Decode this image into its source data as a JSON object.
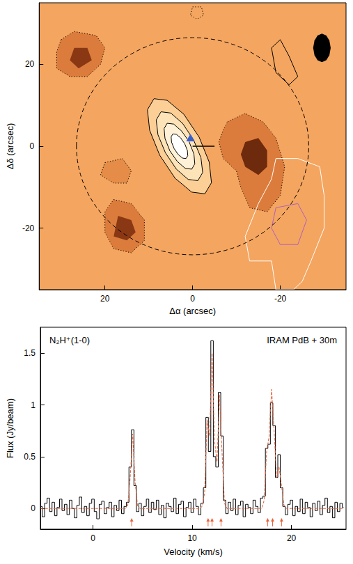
{
  "chart_data": [
    {
      "type": "map",
      "xlabel": "Δα (arcsec)",
      "ylabel": "Δδ (arcsec)",
      "xlim": [
        35,
        -35
      ],
      "ylim": [
        -35,
        35
      ],
      "xticks": [
        20,
        0,
        -20
      ],
      "yticks": [
        -20,
        0,
        20
      ],
      "color": "#f4a55f",
      "contours": [
        {
          "fill": "#dc7c3c",
          "color": "#000000",
          "line_style": "dotted",
          "points": [
            [
              -8,
              6
            ],
            [
              -12,
              8
            ],
            [
              -16,
              6
            ],
            [
              -19,
              2
            ],
            [
              -21,
              -5
            ],
            [
              -20,
              -12
            ],
            [
              -17,
              -16
            ],
            [
              -13,
              -15
            ],
            [
              -11,
              -10
            ],
            [
              -10,
              -6
            ],
            [
              -7,
              -3
            ],
            [
              -6,
              1
            ],
            [
              -7,
              4
            ]
          ]
        },
        {
          "fill": "#6e2a0c",
          "points": [
            [
              -12,
              1
            ],
            [
              -15,
              2
            ],
            [
              -17,
              -1
            ],
            [
              -17,
              -5
            ],
            [
              -15,
              -7
            ],
            [
              -12,
              -5
            ],
            [
              -11,
              -2
            ]
          ]
        },
        {
          "fill": "#dc7c3c",
          "color": "#000000",
          "line_style": "dotted",
          "points": [
            [
              30,
              26
            ],
            [
              27,
              28
            ],
            [
              22,
              27
            ],
            [
              20,
              24
            ],
            [
              21,
              20
            ],
            [
              24,
              17
            ],
            [
              28,
              17
            ],
            [
              31,
              19
            ],
            [
              31,
              23
            ]
          ]
        },
        {
          "fill": "#8a3814",
          "points": [
            [
              27,
              24
            ],
            [
              24,
              24
            ],
            [
              23,
              21
            ],
            [
              26,
              19
            ],
            [
              28,
              21
            ]
          ]
        },
        {
          "fill": "#dc7c3c",
          "color": "#000000",
          "line_style": "dotted",
          "points": [
            [
              18,
              -13
            ],
            [
              14,
              -14
            ],
            [
              11,
              -18
            ],
            [
              11,
              -23
            ],
            [
              14,
              -26
            ],
            [
              18,
              -25
            ],
            [
              20,
              -21
            ],
            [
              20,
              -16
            ]
          ]
        },
        {
          "fill": "#8a3814",
          "points": [
            [
              17,
              -17
            ],
            [
              14,
              -18
            ],
            [
              13,
              -21
            ],
            [
              15,
              -23
            ],
            [
              18,
              -22
            ]
          ]
        },
        {
          "fill": "#e58d48",
          "color": "#000000",
          "line_style": "dotted",
          "points": [
            [
              20,
              -4
            ],
            [
              16,
              -3
            ],
            [
              14,
              -6
            ],
            [
              15,
              -9
            ],
            [
              18,
              -9
            ],
            [
              21,
              -7
            ]
          ]
        },
        {
          "color": "#000000",
          "line_style": "dotted",
          "points": [
            [
              0,
              34
            ],
            [
              -2,
              34
            ],
            [
              -2.5,
              32
            ],
            [
              -1,
              31
            ],
            [
              0.5,
              32
            ]
          ]
        },
        {
          "color": "#000000",
          "line_style": "solid",
          "points": [
            [
              -18,
              24
            ],
            [
              -20,
              26
            ],
            [
              -22,
              22
            ],
            [
              -24,
              17
            ],
            [
              -22,
              15
            ],
            [
              -19,
              18
            ]
          ]
        },
        {
          "color": "#ffffff",
          "line_style": "solid",
          "points": [
            [
              -19,
              -3
            ],
            [
              -24,
              -3
            ],
            [
              -29,
              -5
            ],
            [
              -30,
              -12
            ],
            [
              -30,
              -20
            ],
            [
              -27,
              -28
            ],
            [
              -25,
              -33
            ],
            [
              -23,
              -35
            ],
            [
              -19,
              -35
            ],
            [
              -18,
              -28
            ],
            [
              -13,
              -28
            ],
            [
              -12,
              -22
            ],
            [
              -15,
              -14
            ],
            [
              -18,
              -8
            ]
          ]
        },
        {
          "color": "#b060c0",
          "line_style": "solid",
          "points": [
            [
              -19,
              -15
            ],
            [
              -24,
              -14
            ],
            [
              -26,
              -18
            ],
            [
              -24,
              -24
            ],
            [
              -20,
              -24
            ],
            [
              -18,
              -20
            ]
          ]
        },
        {
          "fill": "#fbcf96",
          "color": "#000000",
          "line_style": "solid",
          "points": [
            [
              8.8,
              11.6
            ],
            [
              10.3,
              8.9
            ],
            [
              9.8,
              3.9
            ],
            [
              7.5,
              -2.2
            ],
            [
              4.0,
              -7.8
            ],
            [
              0.2,
              -11.2
            ],
            [
              -2.8,
              -11.6
            ],
            [
              -4.3,
              -8.9
            ],
            [
              -3.8,
              -3.9
            ],
            [
              -1.5,
              2.2
            ],
            [
              2.0,
              7.8
            ],
            [
              5.8,
              11.2
            ]
          ]
        },
        {
          "fill": "#fde3b8",
          "color": "#000000",
          "line_style": "solid",
          "points": [
            [
              7.2,
              8.4
            ],
            [
              8.3,
              6.4
            ],
            [
              7.9,
              2.8
            ],
            [
              6.2,
              -1.6
            ],
            [
              3.7,
              -5.6
            ],
            [
              1.0,
              -8.1
            ],
            [
              -1.2,
              -8.4
            ],
            [
              -2.3,
              -6.4
            ],
            [
              -1.9,
              -2.8
            ],
            [
              -0.2,
              1.6
            ],
            [
              2.3,
              5.6
            ],
            [
              5.0,
              8.1
            ]
          ]
        },
        {
          "fill": "#fff1d8",
          "color": "#000000",
          "line_style": "solid",
          "points": [
            [
              5.8,
              5.6
            ],
            [
              6.5,
              4.3
            ],
            [
              6.3,
              1.9
            ],
            [
              5.2,
              -1.1
            ],
            [
              3.5,
              -3.7
            ],
            [
              1.7,
              -5.4
            ],
            [
              0.2,
              -5.6
            ],
            [
              -0.5,
              -4.3
            ],
            [
              -0.3,
              -1.9
            ],
            [
              0.8,
              1.1
            ],
            [
              2.5,
              3.7
            ],
            [
              4.3,
              5.4
            ]
          ]
        },
        {
          "fill": "#ffffff",
          "color": "#000000",
          "line_style": "solid",
          "points": [
            [
              4.5,
              3.0
            ],
            [
              4.9,
              2.3
            ],
            [
              4.8,
              1.0
            ],
            [
              4.2,
              -0.6
            ],
            [
              3.3,
              -2.0
            ],
            [
              2.3,
              -2.9
            ],
            [
              1.5,
              -3.0
            ],
            [
              1.1,
              -2.3
            ],
            [
              1.2,
              -1.0
            ],
            [
              1.8,
              0.6
            ],
            [
              2.7,
              2.0
            ],
            [
              3.7,
              2.9
            ]
          ]
        },
        {
          "fill": "#000000",
          "points": [
            [
              -27.5,
              24
            ],
            [
              -27.8,
              25.8
            ],
            [
              -28.5,
              27.0
            ],
            [
              -29.5,
              27.5
            ],
            [
              -30.5,
              27.0
            ],
            [
              -31.2,
              25.8
            ],
            [
              -31.5,
              24
            ],
            [
              -31.2,
              22.2
            ],
            [
              -30.5,
              21.0
            ],
            [
              -29.5,
              20.5
            ],
            [
              -28.5,
              21.0
            ],
            [
              -27.8,
              22.2
            ]
          ]
        }
      ],
      "circles": [
        {
          "x": 0,
          "y": 0,
          "r": 26.5,
          "color": "#000000",
          "line_style": "dashed"
        }
      ],
      "segments": [
        {
          "points": [
            [
              0,
              0
            ],
            [
              -5,
              0
            ]
          ],
          "color": "#000000",
          "line_style": "solid"
        }
      ],
      "markers": [
        {
          "x": 0.5,
          "y": 2,
          "marker": "triangle",
          "color": "#3a5fcd"
        }
      ]
    },
    {
      "type": "line",
      "title": "N₂H⁺(1-0)",
      "subtitle": "IRAM PdB + 30m",
      "xlabel": "Velocity (km/s)",
      "ylabel": "Flux (Jy/beam)",
      "xlim": [
        -5.3,
        25.5
      ],
      "ylim": [
        -0.2,
        1.75
      ],
      "xticks": [
        0,
        10,
        20
      ],
      "yticks": [
        0,
        0.5,
        1,
        1.5
      ],
      "x": [
        -5.25,
        -5,
        -4.75,
        -4.5,
        -4.25,
        -4,
        -3.75,
        -3.5,
        -3.25,
        -3,
        -2.75,
        -2.5,
        -2.25,
        -2,
        -1.75,
        -1.5,
        -1.25,
        -1,
        -0.75,
        -0.5,
        -0.25,
        0,
        0.25,
        0.5,
        0.75,
        1,
        1.25,
        1.5,
        1.75,
        2,
        2.25,
        2.5,
        2.75,
        3,
        3.25,
        3.5,
        3.75,
        4,
        4.25,
        4.5,
        4.75,
        5,
        5.25,
        5.5,
        5.75,
        6,
        6.25,
        6.5,
        6.75,
        7,
        7.25,
        7.5,
        7.75,
        8,
        8.25,
        8.5,
        8.75,
        9,
        9.25,
        9.5,
        9.75,
        10,
        10.25,
        10.5,
        10.75,
        11,
        11.25,
        11.5,
        11.75,
        12,
        12.25,
        12.5,
        12.75,
        13,
        13.25,
        13.5,
        13.75,
        14,
        14.25,
        14.5,
        14.75,
        15,
        15.25,
        15.5,
        15.75,
        16,
        16.25,
        16.5,
        16.75,
        17,
        17.25,
        17.5,
        17.75,
        18,
        18.25,
        18.5,
        18.75,
        19,
        19.25,
        19.5,
        19.75,
        20,
        20.25,
        20.5,
        20.75,
        21,
        21.25,
        21.5,
        21.75,
        22,
        22.25,
        22.5,
        22.75,
        23,
        23.25,
        23.5,
        23.75,
        24,
        24.25,
        24.5,
        24.75,
        25,
        25.25
      ],
      "series": [
        {
          "type": "step",
          "color": "#000000",
          "line_style": "solid",
          "values": [
            0.02,
            -0.08,
            0.05,
            0.1,
            -0.03,
            0.06,
            -0.07,
            0.01,
            0.09,
            -0.02,
            0.04,
            -0.06,
            0.08,
            0.0,
            -0.09,
            0.03,
            0.11,
            -0.04,
            0.02,
            -0.07,
            0.05,
            0.09,
            -0.03,
            -0.1,
            0.04,
            0.07,
            -0.05,
            0.01,
            0.06,
            -0.08,
            0.03,
            -0.02,
            0.08,
            -0.05,
            0.02,
            0.06,
            0.4,
            0.76,
            0.22,
            -0.03,
            0.05,
            -0.07,
            0.02,
            0.09,
            -0.04,
            0.06,
            -0.01,
            0.08,
            -0.06,
            0.03,
            -0.09,
            0.05,
            0.02,
            -0.03,
            0.1,
            -0.05,
            0.04,
            0.07,
            -0.08,
            0.01,
            0.06,
            -0.04,
            0.09,
            0.02,
            -0.06,
            0.05,
            0.2,
            0.88,
            0.55,
            1.62,
            0.5,
            0.4,
            1.12,
            0.7,
            0.08,
            -0.05,
            0.06,
            -0.02,
            0.09,
            -0.06,
            0.03,
            0.07,
            -0.08,
            0.04,
            0.01,
            -0.05,
            0.08,
            0.02,
            -0.04,
            0.1,
            0.12,
            0.58,
            0.62,
            1.02,
            0.8,
            0.3,
            0.52,
            0.2,
            0.02,
            -0.06,
            0.04,
            0.08,
            -0.07,
            0.02,
            -0.03,
            0.09,
            -0.05,
            0.06,
            0.01,
            -0.08,
            0.05,
            -0.02,
            0.07,
            -0.06,
            0.03,
            0.1,
            -0.04,
            0.02,
            -0.09,
            0.06,
            -0.03,
            0.05,
            0.01
          ]
        },
        {
          "type": "line",
          "color": "#e8623c",
          "line_style": "dashed",
          "values": [
            0,
            0,
            0,
            0,
            0,
            0,
            0,
            0,
            0,
            0,
            0,
            0,
            0,
            0,
            0,
            0,
            0,
            0,
            0,
            0,
            0,
            0,
            0,
            0,
            0,
            0,
            0,
            0,
            0,
            0,
            0,
            0,
            0,
            0,
            0,
            0.02,
            0.3,
            0.72,
            0.25,
            0.02,
            0,
            0,
            0,
            0,
            0,
            0,
            0,
            0,
            0,
            0,
            0,
            0,
            0,
            0,
            0,
            0,
            0,
            0,
            0,
            0,
            0,
            0,
            0,
            0,
            0,
            0.02,
            0.15,
            0.85,
            0.7,
            1.5,
            0.65,
            0.45,
            1.1,
            0.55,
            0.05,
            0,
            0,
            0,
            0,
            0,
            0,
            0,
            0,
            0,
            0,
            0,
            0,
            0,
            0,
            0,
            0.08,
            0.55,
            0.7,
            1.15,
            0.75,
            0.3,
            0.4,
            0.22,
            0.03,
            0,
            0,
            0,
            0,
            0,
            0,
            0,
            0,
            0,
            0,
            0,
            0,
            0,
            0,
            0,
            0,
            0,
            0,
            0,
            0,
            0,
            0,
            0,
            0
          ]
        }
      ],
      "arrows": {
        "x": [
          3.9,
          11.6,
          12.0,
          12.9,
          17.6,
          18.1,
          19.0
        ],
        "color": "#e8623c"
      }
    }
  ]
}
